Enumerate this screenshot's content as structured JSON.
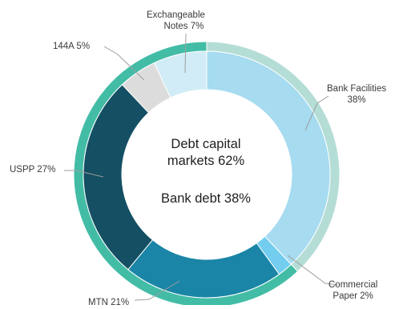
{
  "chart_data": {
    "type": "pie",
    "center_text": {
      "line1": "Debt capital",
      "line2": "markets 62%",
      "line3": "Bank debt 38%"
    },
    "outer_ring": [
      {
        "name": "Bank debt",
        "value": 38,
        "color": "#b4ddd6"
      },
      {
        "name": "Debt capital markets",
        "value": 62,
        "color": "#43bca6"
      }
    ],
    "inner_ring": [
      {
        "name": "Bank Facilities",
        "value": 38,
        "color": "#a6dbf0"
      },
      {
        "name": "Commercial Paper",
        "value": 2,
        "color": "#72cdee"
      },
      {
        "name": "MTN",
        "value": 21,
        "color": "#1a85a6"
      },
      {
        "name": "USPP",
        "value": 27,
        "color": "#144f63"
      },
      {
        "name": "144A",
        "value": 5,
        "color": "#dcdcdc"
      },
      {
        "name": "Exchangeable Notes",
        "value": 7,
        "color": "#d1ecf6"
      }
    ],
    "labels": {
      "exchangeable": [
        "Exchangeable",
        "Notes 7%"
      ],
      "a144": "144A 5%",
      "bank": [
        "Bank Facilities",
        "38%"
      ],
      "uspp": "USPP 27%",
      "mtn": "MTN 21%",
      "cp": [
        "Commercial",
        "Paper 2%"
      ]
    }
  }
}
